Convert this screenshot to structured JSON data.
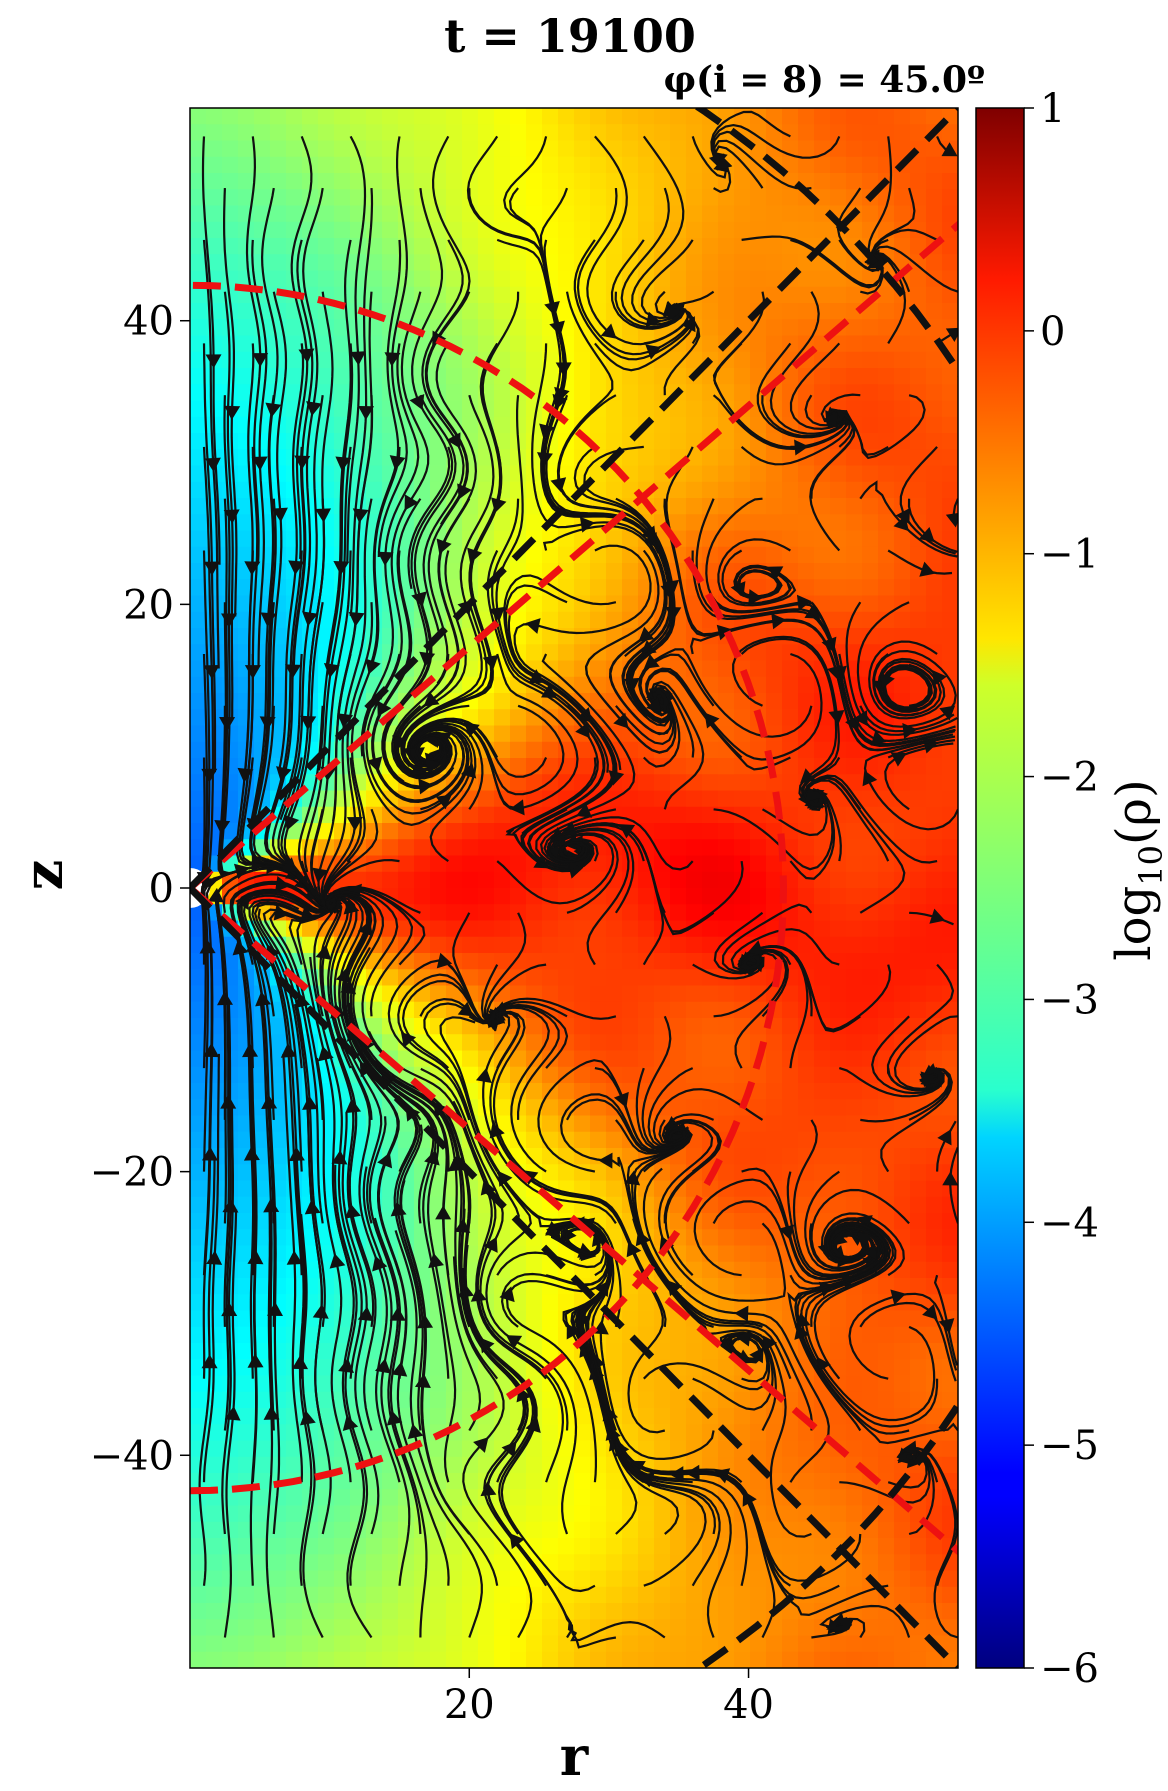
{
  "chart_data": {
    "type": "heatmap",
    "title": "t = 19100",
    "subtitle": "φ(i = 8) = 45.0º",
    "xlabel": "r",
    "ylabel": "z",
    "xlim": [
      0,
      55
    ],
    "ylim": [
      -55,
      55
    ],
    "x_ticks": [
      {
        "value": 20,
        "label": "20"
      },
      {
        "value": 40,
        "label": "40"
      }
    ],
    "y_ticks": [
      {
        "value": 40,
        "label": "40"
      },
      {
        "value": 20,
        "label": "20"
      },
      {
        "value": 0,
        "label": "0"
      },
      {
        "value": -20,
        "label": "−20"
      },
      {
        "value": -40,
        "label": "−40"
      }
    ],
    "colorbar": {
      "label_main": "log",
      "label_sub": "10",
      "label_arg": "(ρ)",
      "min": -6,
      "max": 1,
      "colormap": "jet",
      "ticks": [
        {
          "value": 1,
          "label": "1"
        },
        {
          "value": 0,
          "label": "0"
        },
        {
          "value": -1,
          "label": "−1"
        },
        {
          "value": -2,
          "label": "−2"
        },
        {
          "value": -3,
          "label": "−3"
        },
        {
          "value": -4,
          "label": "−4"
        },
        {
          "value": -5,
          "label": "−5"
        },
        {
          "value": -6,
          "label": "−6"
        }
      ]
    },
    "overlays": {
      "red_dashed_circle_radius": 42.5,
      "black_dashed_angle_deg": 45,
      "black_dashed_circle_radius": 66
    },
    "colors": {
      "red_dashed": "#ee1111",
      "black_dashed": "#111111",
      "streamline": "#111111"
    }
  }
}
